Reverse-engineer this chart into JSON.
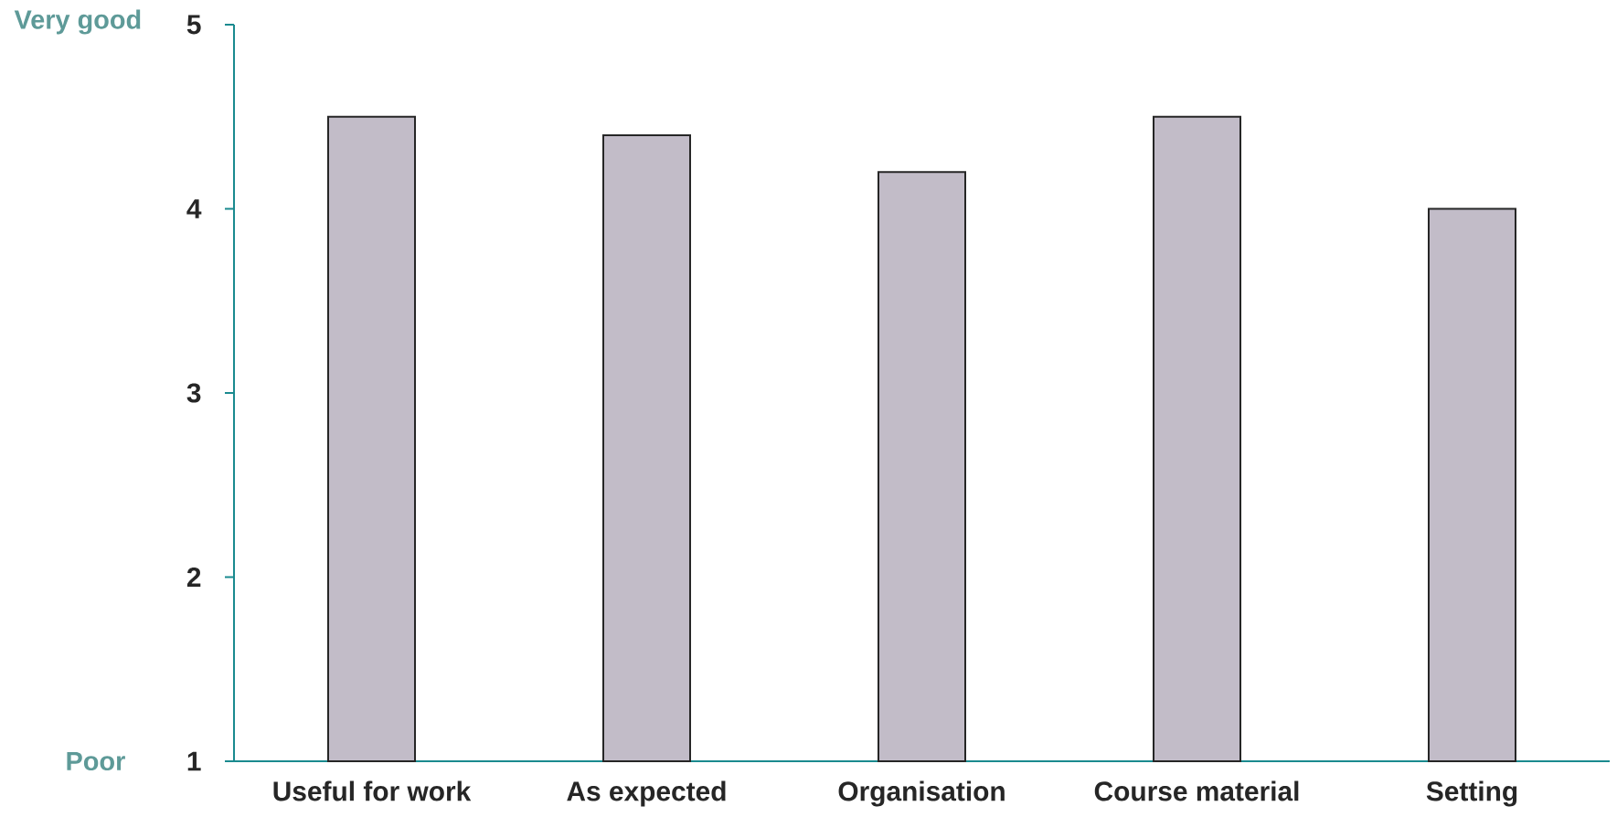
{
  "chart_data": {
    "type": "bar",
    "categories": [
      "Useful for work",
      "As expected",
      "Organisation",
      "Course material",
      "Setting"
    ],
    "values": [
      4.5,
      4.4,
      4.2,
      4.5,
      4.0
    ],
    "color": "#c2bcc8",
    "ylim": [
      1,
      5
    ],
    "yticks": [
      1,
      2,
      3,
      4,
      5
    ],
    "annotations": [
      "Very good",
      "Poor"
    ],
    "grid": false
  }
}
